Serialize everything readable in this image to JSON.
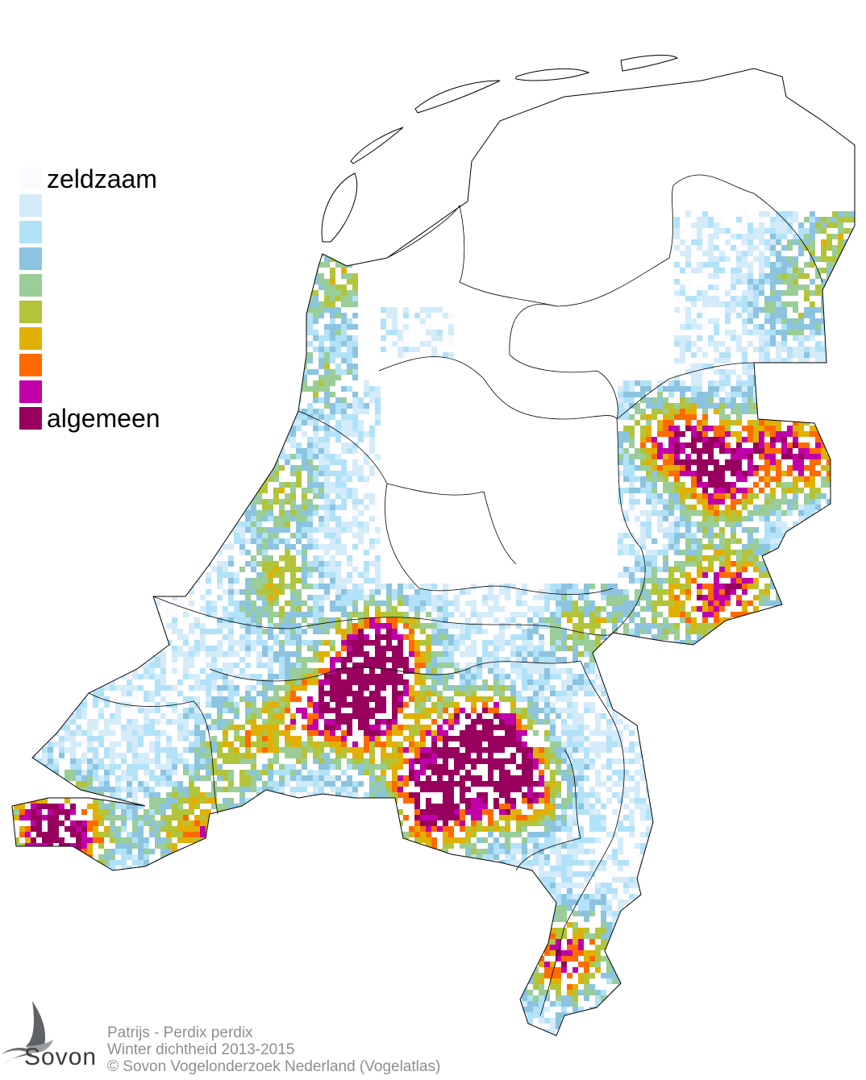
{
  "legend": {
    "items": [
      {
        "label": "zeldzaam",
        "color": "#fafaff"
      },
      {
        "label": "",
        "color": "#d4ebfa"
      },
      {
        "label": "",
        "color": "#b2e2f8"
      },
      {
        "label": "",
        "color": "#8cc4e0"
      },
      {
        "label": "",
        "color": "#9acd97"
      },
      {
        "label": "",
        "color": "#b2c43a"
      },
      {
        "label": "",
        "color": "#e1b005"
      },
      {
        "label": "",
        "color": "#ff6a00"
      },
      {
        "label": "",
        "color": "#c000a8"
      },
      {
        "label": "algemeen",
        "color": "#98005e"
      }
    ]
  },
  "logo": {
    "text": "Sovon"
  },
  "caption": {
    "species": "Patrijs - Perdix perdix",
    "subtitle": "Winter dichtheid 2013-2015",
    "copyright": "© Sovon Vogelonderzoek Nederland (Vogelatlas)"
  }
}
